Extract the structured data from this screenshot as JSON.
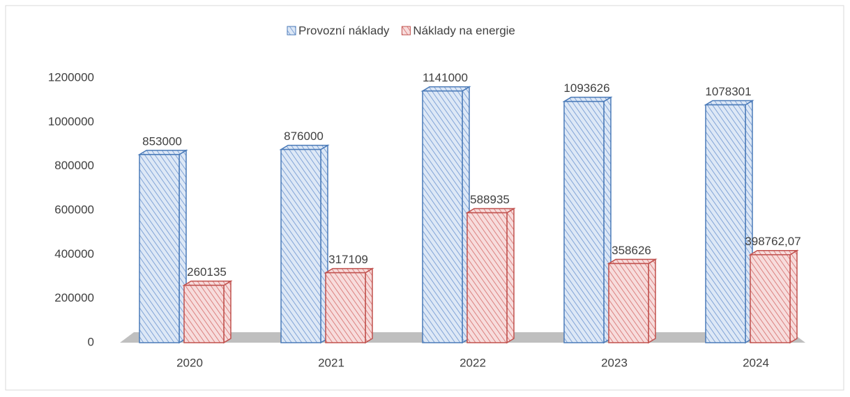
{
  "chart_data": {
    "type": "bar",
    "categories": [
      "2020",
      "2021",
      "2022",
      "2023",
      "2024"
    ],
    "series": [
      {
        "name": "Provozní náklady",
        "color": "#4a7ab8",
        "values": [
          853000,
          876000,
          1141000,
          1093626,
          1078301
        ]
      },
      {
        "name": "Náklady na energie",
        "color": "#c0504d",
        "values": [
          260135,
          317109,
          588935,
          358626,
          398762.07
        ],
        "value_labels": [
          "260135",
          "317109",
          "588935",
          "358626",
          "398762,07"
        ]
      }
    ],
    "ylim": [
      0,
      1200000
    ],
    "yticks": [
      0,
      200000,
      400000,
      600000,
      800000,
      1000000,
      1200000
    ],
    "grid": false,
    "legend": "top"
  }
}
